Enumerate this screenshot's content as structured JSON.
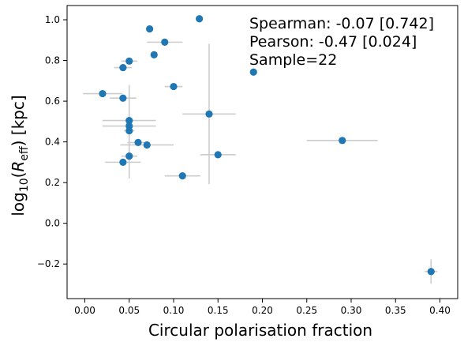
{
  "chart_data": {
    "type": "scatter",
    "title": "",
    "xlabel": "Circular polarisation fraction",
    "ylabel": "log10(Reff) [kpc]",
    "ylabel_parts": {
      "base": "log",
      "sub1": "10",
      "open": "(",
      "r": "R",
      "sub2": "eff",
      "close": ") [kpc]"
    },
    "xlim": [
      -0.02,
      0.42
    ],
    "ylim": [
      -0.37,
      1.07
    ],
    "x_ticks": [
      {
        "value": 0.0,
        "label": "0.00"
      },
      {
        "value": 0.05,
        "label": "0.05"
      },
      {
        "value": 0.1,
        "label": "0.10"
      },
      {
        "value": 0.15,
        "label": "0.15"
      },
      {
        "value": 0.2,
        "label": "0.20"
      },
      {
        "value": 0.25,
        "label": "0.25"
      },
      {
        "value": 0.3,
        "label": "0.30"
      },
      {
        "value": 0.35,
        "label": "0.35"
      },
      {
        "value": 0.4,
        "label": "0.40"
      }
    ],
    "y_ticks": [
      {
        "value": -0.2,
        "label": "−0.2"
      },
      {
        "value": 0.0,
        "label": "0.0"
      },
      {
        "value": 0.2,
        "label": "0.2"
      },
      {
        "value": 0.4,
        "label": "0.4"
      },
      {
        "value": 0.6,
        "label": "0.6"
      },
      {
        "value": 0.8,
        "label": "0.8"
      },
      {
        "value": 1.0,
        "label": "1.0"
      }
    ],
    "annotations": [
      "Spearman: -0.07 [0.742]",
      "Pearson: -0.47 [0.024]",
      "Sample=22"
    ],
    "grid": false,
    "legend": "none",
    "colors": {
      "marker": "#1f77b4",
      "errorbar": "#cccccc",
      "axis": "#000000"
    },
    "points": [
      {
        "x": 0.129,
        "y": 1.005,
        "xerr": 0.0,
        "yerr": 0.0
      },
      {
        "x": 0.073,
        "y": 0.955,
        "xerr": 0.0,
        "yerr": 0.0
      },
      {
        "x": 0.09,
        "y": 0.89,
        "xerr": 0.02,
        "yerr": 0.0
      },
      {
        "x": 0.078,
        "y": 0.828,
        "xerr": 0.0,
        "yerr": 0.0
      },
      {
        "x": 0.05,
        "y": 0.797,
        "xerr": 0.009,
        "yerr": 0.0
      },
      {
        "x": 0.043,
        "y": 0.765,
        "xerr": 0.01,
        "yerr": 0.0
      },
      {
        "x": 0.19,
        "y": 0.743,
        "xerr": 0.0,
        "yerr": 0.0
      },
      {
        "x": 0.1,
        "y": 0.672,
        "xerr": 0.01,
        "yerr": 0.0
      },
      {
        "x": 0.02,
        "y": 0.637,
        "xerr": 0.022,
        "yerr": 0.0
      },
      {
        "x": 0.043,
        "y": 0.615,
        "xerr": 0.015,
        "yerr": 0.0
      },
      {
        "x": 0.14,
        "y": 0.537,
        "xerr": 0.03,
        "yerr": 0.345
      },
      {
        "x": 0.05,
        "y": 0.505,
        "xerr": 0.03,
        "yerr": 0.175
      },
      {
        "x": 0.05,
        "y": 0.478,
        "xerr": 0.03,
        "yerr": 0.0
      },
      {
        "x": 0.05,
        "y": 0.455,
        "xerr": 0.006,
        "yerr": 0.0
      },
      {
        "x": 0.29,
        "y": 0.407,
        "xerr": 0.04,
        "yerr": 0.0
      },
      {
        "x": 0.06,
        "y": 0.397,
        "xerr": 0.012,
        "yerr": 0.0
      },
      {
        "x": 0.07,
        "y": 0.385,
        "xerr": 0.03,
        "yerr": 0.0
      },
      {
        "x": 0.15,
        "y": 0.337,
        "xerr": 0.02,
        "yerr": 0.0
      },
      {
        "x": 0.05,
        "y": 0.33,
        "xerr": 0.009,
        "yerr": 0.11
      },
      {
        "x": 0.043,
        "y": 0.3,
        "xerr": 0.02,
        "yerr": 0.0
      },
      {
        "x": 0.11,
        "y": 0.233,
        "xerr": 0.02,
        "yerr": 0.0
      },
      {
        "x": 0.39,
        "y": -0.237,
        "xerr": 0.007,
        "yerr": 0.06
      }
    ]
  }
}
